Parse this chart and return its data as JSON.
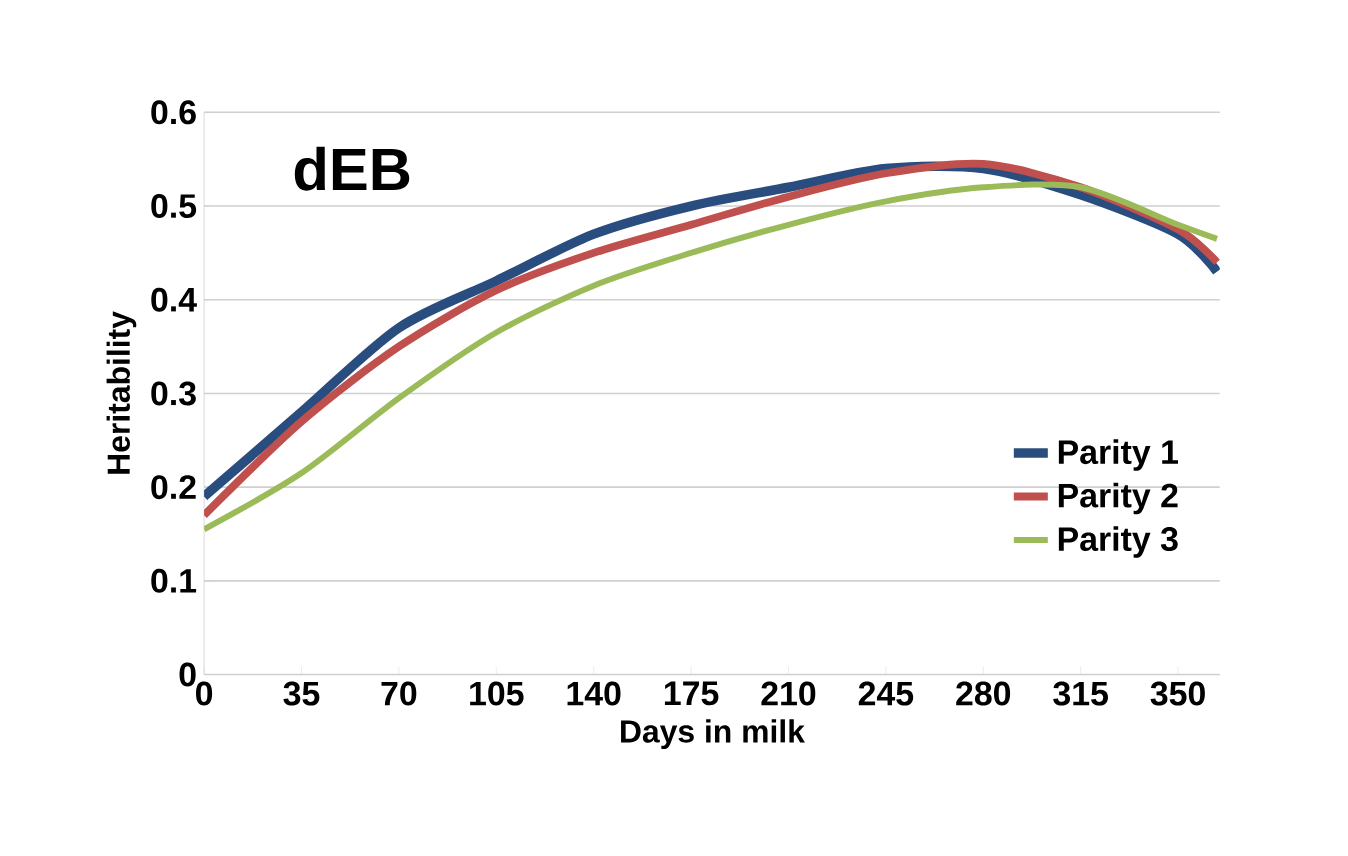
{
  "chart_data": {
    "type": "line",
    "title": "dEB",
    "xlabel": "Days in milk",
    "ylabel": "Heritability",
    "xlim": [
      0,
      365
    ],
    "xticks": [
      0,
      35,
      70,
      105,
      140,
      175,
      210,
      245,
      280,
      315,
      350
    ],
    "ylim": [
      0,
      0.6
    ],
    "yticks": [
      0,
      0.1,
      0.2,
      0.3,
      0.4,
      0.5,
      0.6
    ],
    "grid": "y",
    "legend": "right",
    "marker": "none",
    "line_style": "solid",
    "x": [
      0,
      35,
      70,
      105,
      140,
      175,
      210,
      245,
      280,
      315,
      350,
      364
    ],
    "series": [
      {
        "name": "Parity 1",
        "color": "#2a4d7f",
        "values": [
          0.19,
          0.28,
          0.37,
          0.42,
          0.47,
          0.5,
          0.52,
          0.54,
          0.54,
          0.512,
          0.47,
          0.43
        ]
      },
      {
        "name": "Parity 2",
        "color": "#c0504d",
        "values": [
          0.17,
          0.27,
          0.35,
          0.41,
          0.45,
          0.48,
          0.51,
          0.535,
          0.545,
          0.52,
          0.475,
          0.44
        ]
      },
      {
        "name": "Parity 3",
        "color": "#9bbb59",
        "values": [
          0.155,
          0.215,
          0.295,
          0.365,
          0.415,
          0.45,
          0.48,
          0.505,
          0.52,
          0.52,
          0.48,
          0.465
        ]
      }
    ]
  }
}
